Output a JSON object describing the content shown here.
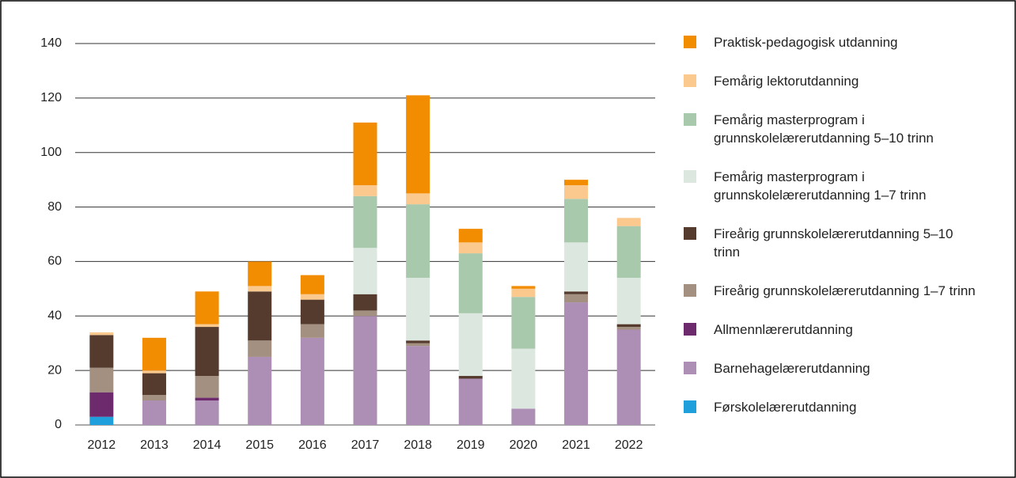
{
  "chart_data": {
    "type": "stacked_bar",
    "categories": [
      "2012",
      "2013",
      "2014",
      "2015",
      "2016",
      "2017",
      "2018",
      "2019",
      "2020",
      "2021",
      "2022"
    ],
    "series": [
      {
        "name": "Førskolelærerutdanning",
        "color": "#1fa0dc",
        "values": [
          3,
          0,
          0,
          0,
          0,
          0,
          0,
          0,
          0,
          0,
          0
        ]
      },
      {
        "name": "Barnehagelærerutdanning",
        "color": "#ad8fb5",
        "values": [
          0,
          9,
          9,
          25,
          32,
          40,
          29,
          17,
          6,
          45,
          35
        ]
      },
      {
        "name": "Allmennlærerutdanning",
        "color": "#6d2a6c",
        "values": [
          9,
          0,
          1,
          0,
          0,
          0,
          0,
          0,
          0,
          0,
          0
        ]
      },
      {
        "name": "Fireårig grunnskolelærerutdanning 1–7 trinn",
        "color": "#a39081",
        "values": [
          9,
          2,
          8,
          6,
          5,
          2,
          1,
          0,
          0,
          3,
          1
        ]
      },
      {
        "name": "Fireårig grunnskolelærerutdanning 5–10 trinn",
        "color": "#553a2e",
        "values": [
          12,
          8,
          18,
          18,
          9,
          6,
          1,
          1,
          0,
          1,
          1
        ]
      },
      {
        "name": "Femårig masterprogram i grunnskolelærerutdanning 1–7 trinn",
        "color": "#dce8df",
        "values": [
          0,
          0,
          0,
          0,
          0,
          17,
          23,
          23,
          22,
          18,
          17
        ]
      },
      {
        "name": "Femårig masterprogram i grunnskolelærerutdanning 5–10 trinn",
        "color": "#a9c9ac",
        "values": [
          0,
          0,
          0,
          0,
          0,
          19,
          27,
          22,
          19,
          16,
          19
        ]
      },
      {
        "name": "Femårig lektorutdanning",
        "color": "#fbc98e",
        "values": [
          1,
          1,
          1,
          2,
          2,
          4,
          4,
          4,
          3,
          5,
          3
        ]
      },
      {
        "name": "Praktisk-pedagogisk utdanning",
        "color": "#f28c00",
        "values": [
          0,
          12,
          12,
          9,
          7,
          23,
          36,
          5,
          1,
          2,
          0
        ]
      }
    ],
    "ylim": [
      0,
      140
    ],
    "yticks": [
      0,
      20,
      40,
      60,
      80,
      100,
      120,
      140
    ],
    "grid": true,
    "legend": "right"
  }
}
